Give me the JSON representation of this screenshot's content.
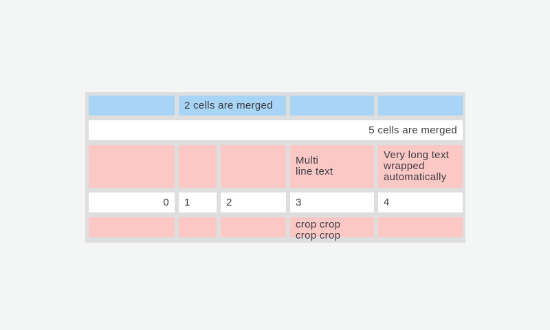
{
  "page": {
    "background_color": "#f4f5f5"
  },
  "table": {
    "colors": {
      "header_cell_blue": "#a8d4f5",
      "highlight_cell_pink": "#fbc8c6",
      "default_cell_white": "#ffffff",
      "table_background_gray": "#dedede",
      "text": "#3b3b40"
    },
    "rows": [
      {
        "cells": [
          {
            "text": "",
            "bg": "blue"
          },
          {
            "text": "2 cells are merged",
            "bg": "blue",
            "colspan": 2
          },
          {
            "text": "",
            "bg": "blue"
          },
          {
            "text": "",
            "bg": "blue"
          }
        ]
      },
      {
        "cells": [
          {
            "text": "5 cells are merged",
            "bg": "white",
            "colspan": 5,
            "align": "right"
          }
        ]
      },
      {
        "cells": [
          {
            "text": "",
            "bg": "pink"
          },
          {
            "text": "",
            "bg": "pink"
          },
          {
            "text": "",
            "bg": "pink"
          },
          {
            "text": "Multi\nline text",
            "bg": "pink"
          },
          {
            "text": "Very long text wrapped automatically",
            "bg": "pink"
          }
        ]
      },
      {
        "cells": [
          {
            "text": "0",
            "bg": "white",
            "align": "right"
          },
          {
            "text": "1",
            "bg": "white"
          },
          {
            "text": "2",
            "bg": "white"
          },
          {
            "text": "3",
            "bg": "white"
          },
          {
            "text": "4",
            "bg": "white"
          }
        ]
      },
      {
        "cells": [
          {
            "text": "",
            "bg": "pink"
          },
          {
            "text": "",
            "bg": "pink"
          },
          {
            "text": "",
            "bg": "pink"
          },
          {
            "text": "crop crop crop crop",
            "bg": "pink",
            "cropped": true
          },
          {
            "text": "",
            "bg": "pink"
          }
        ]
      }
    ]
  }
}
